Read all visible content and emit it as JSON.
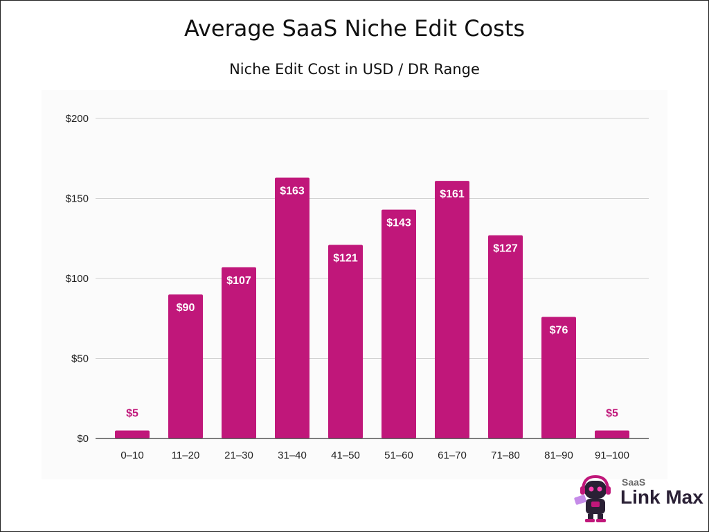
{
  "chart_data": {
    "type": "bar",
    "title": "Average SaaS Niche Edit Costs",
    "subtitle": "Niche Edit Cost in USD / DR Range",
    "categories": [
      "0–10",
      "11–20",
      "21–30",
      "31–40",
      "41–50",
      "51–60",
      "61–70",
      "71–80",
      "81–90",
      "91–100"
    ],
    "values": [
      5,
      90,
      107,
      163,
      121,
      143,
      161,
      127,
      76,
      5
    ],
    "data_labels": [
      "$5",
      "$90",
      "$107",
      "$163",
      "$121",
      "$143",
      "$161",
      "$127",
      "$76",
      "$5"
    ],
    "ylim": [
      0,
      200
    ],
    "yticks": [
      0,
      50,
      100,
      150,
      200
    ],
    "ytick_labels": [
      "$0",
      "$50",
      "$100",
      "$150",
      "$200"
    ],
    "grid": true,
    "legend": "none",
    "bar_color": "#c0177a",
    "label_inside_color": "#ffffff",
    "label_outside_color": "#c0177a"
  },
  "logo": {
    "small_text": "SaaS",
    "big_text": "Link Max",
    "icon": "robot-mascot-icon"
  }
}
